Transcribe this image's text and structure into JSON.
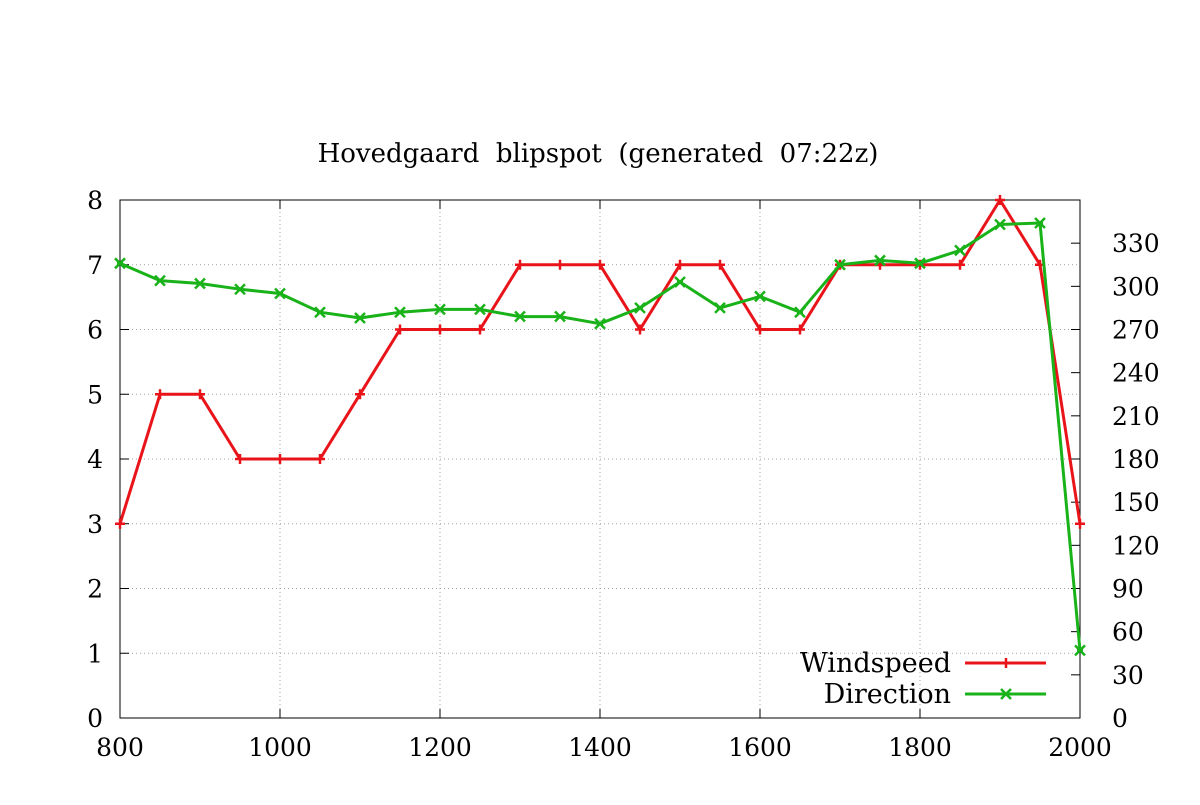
{
  "chart_data": {
    "type": "line",
    "title": "Hovedgaard  blipspot  (generated  07:22z)",
    "xlabel": "",
    "ylabel": "",
    "y2label": "",
    "xlim": [
      800,
      2000
    ],
    "ylim": [
      0,
      8
    ],
    "y2lim": [
      0,
      360
    ],
    "x_ticks": [
      "800",
      "1000",
      "1200",
      "1400",
      "1600",
      "1800",
      "2000"
    ],
    "y_ticks": [
      "0",
      "1",
      "2",
      "3",
      "4",
      "5",
      "6",
      "7",
      "8"
    ],
    "y2_ticks": [
      "0",
      "30",
      "60",
      "90",
      "120",
      "150",
      "180",
      "210",
      "240",
      "270",
      "300",
      "330"
    ],
    "grid": true,
    "legend_position": "bottom-right",
    "series": [
      {
        "name": "Windspeed",
        "axis": "y",
        "color": "#e8141a",
        "marker": "plus",
        "x": [
          800,
          850,
          900,
          950,
          1000,
          1050,
          1100,
          1150,
          1200,
          1250,
          1300,
          1350,
          1400,
          1450,
          1500,
          1550,
          1600,
          1650,
          1700,
          1750,
          1800,
          1850,
          1900,
          1950,
          2000
        ],
        "values": [
          3,
          5,
          5,
          4,
          4,
          4,
          5,
          6,
          6,
          6,
          7,
          7,
          7,
          6,
          7,
          7,
          6,
          6,
          7,
          7,
          7,
          7,
          8,
          7,
          3
        ]
      },
      {
        "name": "Direction",
        "axis": "y2",
        "color": "#19b219",
        "marker": "cross",
        "x": [
          800,
          850,
          900,
          950,
          1000,
          1050,
          1100,
          1150,
          1200,
          1250,
          1300,
          1350,
          1400,
          1450,
          1500,
          1550,
          1600,
          1650,
          1700,
          1750,
          1800,
          1850,
          1900,
          1950,
          2000
        ],
        "values": [
          316,
          304,
          302,
          298,
          295,
          282,
          278,
          282,
          284,
          284,
          279,
          279,
          274,
          285,
          303,
          285,
          293,
          282,
          315,
          318,
          316,
          325,
          343,
          344,
          47
        ]
      }
    ]
  }
}
